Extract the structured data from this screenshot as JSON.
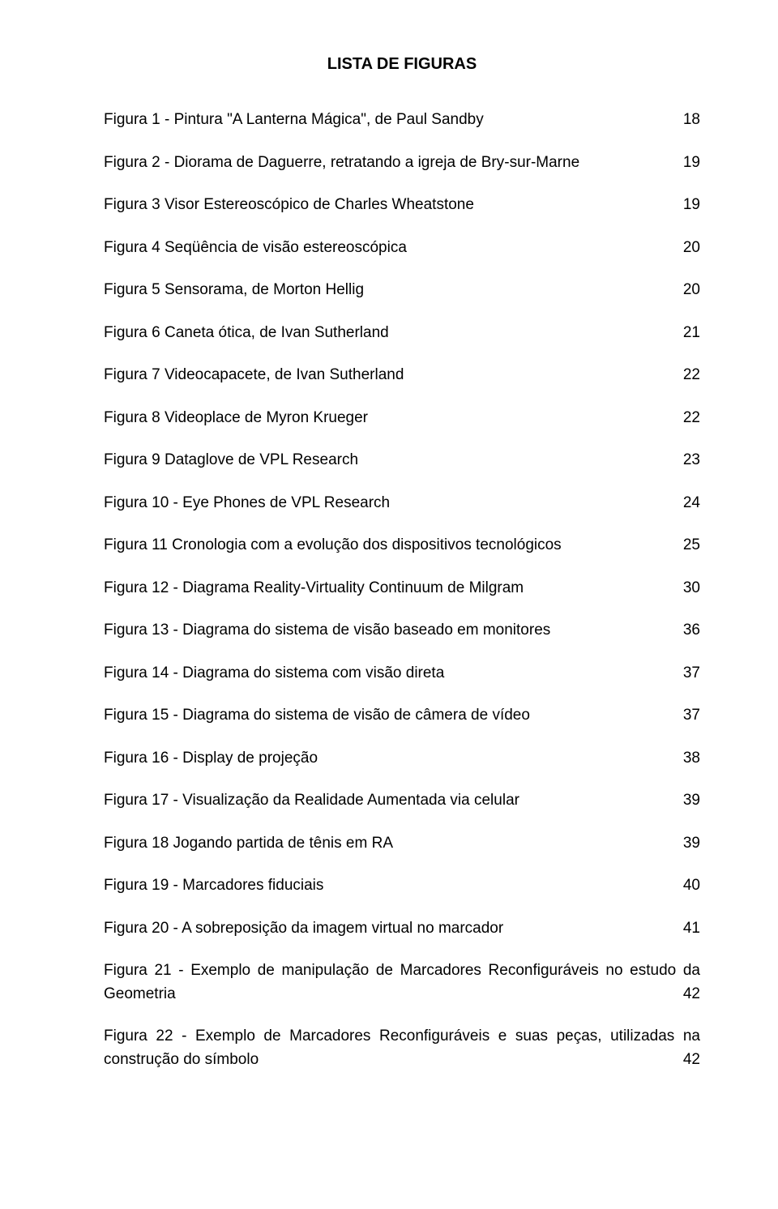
{
  "title": "LISTA DE FIGURAS",
  "entries": [
    {
      "label": "Figura 1 - Pintura \"A Lanterna Mágica\", de Paul Sandby",
      "page": "18",
      "multi": false
    },
    {
      "label": "Figura 2 - Diorama de Daguerre, retratando a igreja de Bry-sur-Marne",
      "page": "19",
      "multi": false
    },
    {
      "label": "Figura 3 Visor Estereoscópico de Charles Wheatstone",
      "page": "19",
      "multi": false
    },
    {
      "label": "Figura 4 Seqüência de visão estereoscópica",
      "page": "20",
      "multi": false
    },
    {
      "label": "Figura 5 Sensorama, de Morton Hellig",
      "page": "20",
      "multi": false
    },
    {
      "label": "Figura 6 Caneta ótica, de Ivan Sutherland",
      "page": "21",
      "multi": false
    },
    {
      "label": "Figura 7 Videocapacete, de Ivan Sutherland",
      "page": "22",
      "multi": false
    },
    {
      "label": "Figura 8 Videoplace de Myron Krueger",
      "page": "22",
      "multi": false
    },
    {
      "label": "Figura 9 Dataglove de VPL Research",
      "page": "23",
      "multi": false
    },
    {
      "label": "Figura 10 - Eye Phones de VPL Research",
      "page": "24",
      "multi": false
    },
    {
      "label": "Figura 11 Cronologia com a evolução dos dispositivos tecnológicos",
      "page": "25",
      "multi": false
    },
    {
      "label": "Figura 12 - Diagrama Reality-Virtuality Continuum de Milgram",
      "page": "30",
      "multi": false
    },
    {
      "label": "Figura 13 - Diagrama do sistema de visão baseado em monitores",
      "page": "36",
      "multi": false
    },
    {
      "label": "Figura 14 - Diagrama do sistema com visão direta",
      "page": "37",
      "multi": false
    },
    {
      "label": "Figura 15 - Diagrama do sistema de visão de câmera de vídeo",
      "page": "37",
      "multi": false
    },
    {
      "label": "Figura 16 - Display de projeção",
      "page": "38",
      "multi": false
    },
    {
      "label": "Figura 17 - Visualização da Realidade Aumentada via celular",
      "page": "39",
      "multi": false
    },
    {
      "label": "Figura 18 Jogando partida de tênis em RA",
      "page": "39",
      "multi": false
    },
    {
      "label": "Figura 19 - Marcadores fiduciais",
      "page": "40",
      "multi": false
    },
    {
      "label": "Figura 20 - A sobreposição da imagem virtual no marcador",
      "page": "41",
      "multi": false
    },
    {
      "label": "Figura 21 - Exemplo de manipulação de Marcadores Reconfiguráveis no estudo da Geometria",
      "page": "42",
      "multi": true
    },
    {
      "label": "Figura 22 - Exemplo de Marcadores Reconfiguráveis e suas peças, utilizadas na construção do símbolo",
      "page": "42",
      "multi": true
    }
  ]
}
